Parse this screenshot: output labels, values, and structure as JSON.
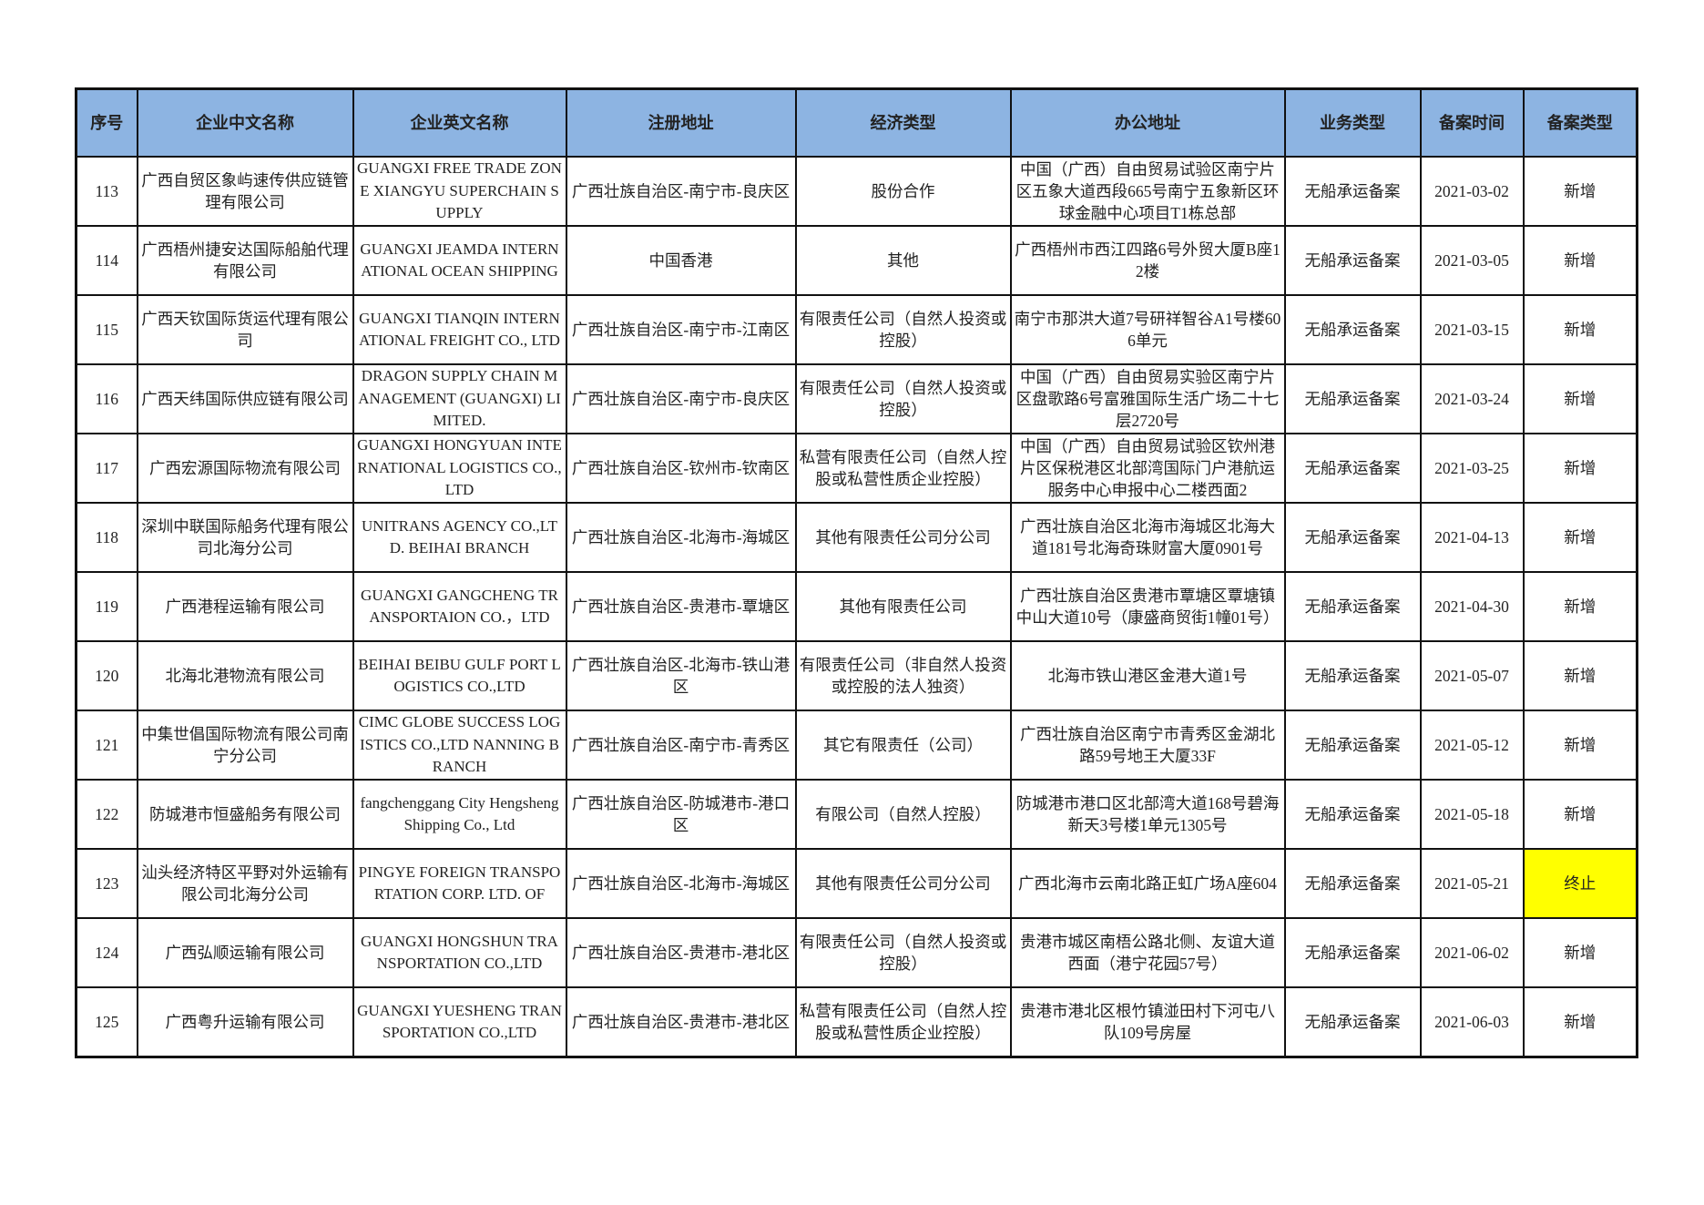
{
  "table": {
    "headers": [
      "序号",
      "企业中文名称",
      "企业英文名称",
      "注册地址",
      "经济类型",
      "办公地址",
      "业务类型",
      "备案时间",
      "备案类型"
    ],
    "highlight_color": "#FFFF00",
    "header_color": "#8DB4E2",
    "rows": [
      {
        "no": "113",
        "cn": "广西自贸区象屿速传供应链管理有限公司",
        "en": "GUANGXI FREE TRADE ZONE XIANGYU SUPERCHAIN SUPPLY",
        "reg": "广西壮族自治区-南宁市-良庆区",
        "econ": "股份合作",
        "office": "中国（广西）自由贸易试验区南宁片区五象大道西段665号南宁五象新区环球金融中心项目T1栋总部",
        "biz": "无船承运备案",
        "date": "2021-03-02",
        "type": "新增",
        "highlight": false
      },
      {
        "no": "114",
        "cn": "广西梧州捷安达国际船舶代理有限公司",
        "en": "GUANGXI JEAMDA INTERNATIONAL OCEAN SHIPPING",
        "reg": "中国香港",
        "econ": "其他",
        "office": "广西梧州市西江四路6号外贸大厦B座12楼",
        "biz": "无船承运备案",
        "date": "2021-03-05",
        "type": "新增",
        "highlight": false
      },
      {
        "no": "115",
        "cn": "广西天钦国际货运代理有限公司",
        "en": "GUANGXI TIANQIN INTERNATIONAL FREIGHT CO., LTD",
        "reg": "广西壮族自治区-南宁市-江南区",
        "econ": "有限责任公司（自然人投资或控股）",
        "office": "南宁市那洪大道7号研祥智谷A1号楼606单元",
        "biz": "无船承运备案",
        "date": "2021-03-15",
        "type": "新增",
        "highlight": false
      },
      {
        "no": "116",
        "cn": "广西天纬国际供应链有限公司",
        "en": "DRAGON SUPPLY CHAIN MANAGEMENT (GUANGXI) LIMITED.",
        "reg": "广西壮族自治区-南宁市-良庆区",
        "econ": "有限责任公司（自然人投资或控股）",
        "office": "中国（广西）自由贸易实验区南宁片区盘歌路6号富雅国际生活广场二十七层2720号",
        "biz": "无船承运备案",
        "date": "2021-03-24",
        "type": "新增",
        "highlight": false
      },
      {
        "no": "117",
        "cn": "广西宏源国际物流有限公司",
        "en": "GUANGXI HONGYUAN INTERNATIONAL LOGISTICS CO.,LTD",
        "reg": "广西壮族自治区-钦州市-钦南区",
        "econ": "私营有限责任公司（自然人控股或私营性质企业控股）",
        "office": "中国（广西）自由贸易试验区钦州港片区保税港区北部湾国际门户港航运服务中心申报中心二楼西面2",
        "biz": "无船承运备案",
        "date": "2021-03-25",
        "type": "新增",
        "highlight": false
      },
      {
        "no": "118",
        "cn": "深圳中联国际船务代理有限公司北海分公司",
        "en": "UNITRANS AGENCY CO.,LTD. BEIHAI BRANCH",
        "reg": "广西壮族自治区-北海市-海城区",
        "econ": "其他有限责任公司分公司",
        "office": "广西壮族自治区北海市海城区北海大道181号北海奇珠财富大厦0901号",
        "biz": "无船承运备案",
        "date": "2021-04-13",
        "type": "新增",
        "highlight": false
      },
      {
        "no": "119",
        "cn": "广西港程运输有限公司",
        "en": "GUANGXI GANGCHENG TRANSPORTAION CO.，LTD",
        "reg": "广西壮族自治区-贵港市-覃塘区",
        "econ": "其他有限责任公司",
        "office": "广西壮族自治区贵港市覃塘区覃塘镇中山大道10号（康盛商贸街1幢01号）",
        "biz": "无船承运备案",
        "date": "2021-04-30",
        "type": "新增",
        "highlight": false
      },
      {
        "no": "120",
        "cn": "北海北港物流有限公司",
        "en": "BEIHAI BEIBU GULF PORT LOGISTICS CO.,LTD",
        "reg": "广西壮族自治区-北海市-铁山港区",
        "econ": "有限责任公司（非自然人投资或控股的法人独资）",
        "office": "北海市铁山港区金港大道1号",
        "biz": "无船承运备案",
        "date": "2021-05-07",
        "type": "新增",
        "highlight": false
      },
      {
        "no": "121",
        "cn": "中集世倡国际物流有限公司南宁分公司",
        "en": "CIMC GLOBE SUCCESS LOGISTICS CO.,LTD NANNING BRANCH",
        "reg": "广西壮族自治区-南宁市-青秀区",
        "econ": "其它有限责任（公司）",
        "office": "广西壮族自治区南宁市青秀区金湖北路59号地王大厦33F",
        "biz": "无船承运备案",
        "date": "2021-05-12",
        "type": "新增",
        "highlight": false
      },
      {
        "no": "122",
        "cn": "防城港市恒盛船务有限公司",
        "en": "fangchenggang City Hengsheng Shipping Co., Ltd",
        "reg": "广西壮族自治区-防城港市-港口区",
        "econ": "有限公司（自然人控股）",
        "office": "防城港市港口区北部湾大道168号碧海新天3号楼1单元1305号",
        "biz": "无船承运备案",
        "date": "2021-05-18",
        "type": "新增",
        "highlight": false
      },
      {
        "no": "123",
        "cn": "汕头经济特区平野对外运输有限公司北海分公司",
        "en": "PINGYE FOREIGN TRANSPORTATION CORP. LTD. OF",
        "reg": "广西壮族自治区-北海市-海城区",
        "econ": "其他有限责任公司分公司",
        "office": "广西北海市云南北路正虹广场A座604",
        "biz": "无船承运备案",
        "date": "2021-05-21",
        "type": "终止",
        "highlight": true
      },
      {
        "no": "124",
        "cn": "广西弘顺运输有限公司",
        "en": "GUANGXI HONGSHUN TRANSPORTATION CO.,LTD",
        "reg": "广西壮族自治区-贵港市-港北区",
        "econ": "有限责任公司（自然人投资或控股）",
        "office": "贵港市城区南梧公路北侧、友谊大道西面（港宁花园57号）",
        "biz": "无船承运备案",
        "date": "2021-06-02",
        "type": "新增",
        "highlight": false
      },
      {
        "no": "125",
        "cn": "广西粤升运输有限公司",
        "en": "GUANGXI YUESHENG TRANSPORTATION CO.,LTD",
        "reg": "广西壮族自治区-贵港市-港北区",
        "econ": "私营有限责任公司（自然人控股或私营性质企业控股）",
        "office": "贵港市港北区根竹镇湴田村下河屯八队109号房屋",
        "biz": "无船承运备案",
        "date": "2021-06-03",
        "type": "新增",
        "highlight": false
      }
    ]
  }
}
